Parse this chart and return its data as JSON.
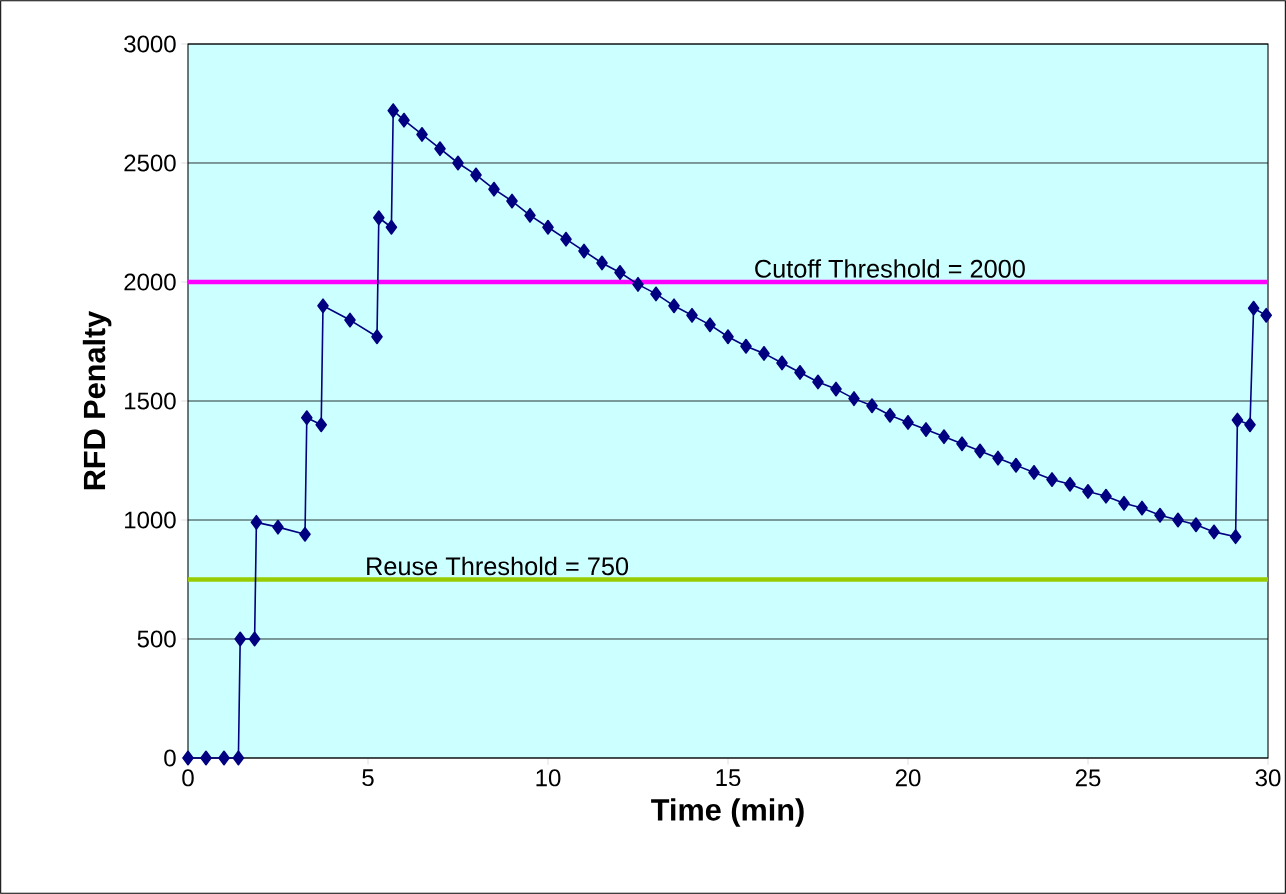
{
  "chart_data": {
    "type": "line",
    "xlabel": "Time (min)",
    "ylabel": "RFD Penalty",
    "xlim": [
      0,
      30
    ],
    "xticks": [
      0,
      5,
      10,
      15,
      20,
      25,
      30
    ],
    "ylim": [
      0,
      3000
    ],
    "yticks": [
      0,
      500,
      1000,
      1500,
      2000,
      2500,
      3000
    ],
    "grid": "y",
    "marker": "diamond",
    "line_style": "solid",
    "x": [
      0,
      0.5,
      1,
      1.4,
      1.45,
      1.85,
      1.9,
      2.5,
      3.25,
      3.3,
      3.7,
      3.75,
      4.5,
      5.25,
      5.3,
      5.65,
      5.7,
      6,
      6.5,
      7,
      7.5,
      8,
      8.5,
      9,
      9.5,
      10,
      10.5,
      11,
      11.5,
      12,
      12.5,
      13,
      13.5,
      14,
      14.5,
      15,
      15.5,
      16,
      16.5,
      17,
      17.5,
      18,
      18.5,
      19,
      19.5,
      20,
      20.5,
      21,
      21.5,
      22,
      22.5,
      23,
      23.5,
      24,
      24.5,
      25,
      25.5,
      26,
      26.5,
      27,
      27.5,
      28,
      28.5,
      29.1,
      29.15,
      29.5,
      29.6,
      29.95
    ],
    "series": [
      {
        "color": "#000080",
        "values": [
          0,
          0,
          0,
          0,
          500,
          500,
          990,
          970,
          940,
          1430,
          1400,
          1900,
          1840,
          1770,
          2270,
          2230,
          2720,
          2680,
          2620,
          2560,
          2500,
          2450,
          2390,
          2340,
          2280,
          2230,
          2180,
          2130,
          2080,
          2040,
          1990,
          1950,
          1900,
          1860,
          1820,
          1770,
          1730,
          1700,
          1660,
          1620,
          1580,
          1550,
          1510,
          1480,
          1440,
          1410,
          1380,
          1350,
          1320,
          1290,
          1260,
          1230,
          1200,
          1170,
          1150,
          1120,
          1100,
          1070,
          1050,
          1020,
          1000,
          980,
          950,
          930,
          1420,
          1400,
          1890,
          1860
        ]
      }
    ],
    "ref_lines": [
      {
        "axis": "y",
        "value": 2000,
        "label": "Cutoff Threshold = 2000",
        "color": "#ff00ff"
      },
      {
        "axis": "y",
        "value": 750,
        "label": "Reuse Threshold = 750",
        "color": "#99cc00"
      }
    ]
  }
}
